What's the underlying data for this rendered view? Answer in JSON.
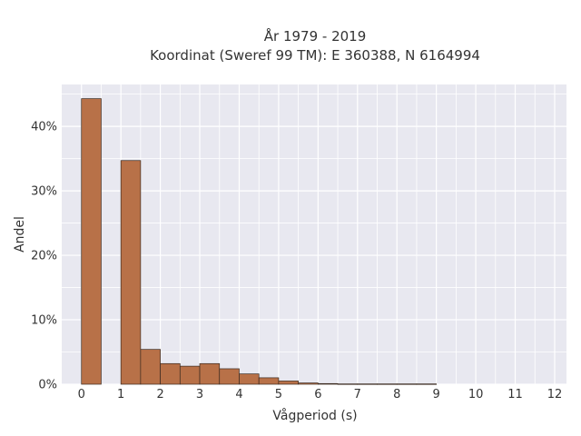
{
  "chart_data": {
    "type": "bar",
    "title_lines": [
      "År 1979 - 2019",
      "Koordinat (Sweref 99 TM): E 360388, N 6164994"
    ],
    "xlabel": "Vågperiod (s)",
    "ylabel": "Andel",
    "bin_width": 0.5,
    "bins": [
      {
        "x0": 0.0,
        "value": 44.3
      },
      {
        "x0": 0.5,
        "value": 0.0
      },
      {
        "x0": 1.0,
        "value": 34.7
      },
      {
        "x0": 1.5,
        "value": 5.4
      },
      {
        "x0": 2.0,
        "value": 3.2
      },
      {
        "x0": 2.5,
        "value": 2.8
      },
      {
        "x0": 3.0,
        "value": 3.2
      },
      {
        "x0": 3.5,
        "value": 2.4
      },
      {
        "x0": 4.0,
        "value": 1.6
      },
      {
        "x0": 4.5,
        "value": 1.0
      },
      {
        "x0": 5.0,
        "value": 0.5
      },
      {
        "x0": 5.5,
        "value": 0.2
      },
      {
        "x0": 6.0,
        "value": 0.1
      },
      {
        "x0": 6.5,
        "value": 0.05
      },
      {
        "x0": 7.0,
        "value": 0.05
      },
      {
        "x0": 7.5,
        "value": 0.05
      },
      {
        "x0": 8.0,
        "value": 0.05
      },
      {
        "x0": 8.5,
        "value": 0.05
      }
    ],
    "xlim": [
      -0.5,
      12.3
    ],
    "ylim": [
      0,
      46.5
    ],
    "x_ticks": [
      0,
      1,
      2,
      3,
      4,
      5,
      6,
      7,
      8,
      9,
      10,
      11,
      12
    ],
    "x_tick_labels": [
      "0",
      "1",
      "2",
      "3",
      "4",
      "5",
      "6",
      "7",
      "8",
      "9",
      "10",
      "11",
      "12"
    ],
    "y_ticks": [
      0,
      10,
      20,
      30,
      40
    ],
    "y_tick_labels": [
      "0%",
      "10%",
      "20%",
      "30%",
      "40%"
    ],
    "grid": true,
    "colors": {
      "bar_fill": "#b87148",
      "bar_stroke": "#3a2a20",
      "plot_background": "#e8e8f0",
      "grid": "#ffffff",
      "text": "#333333"
    }
  }
}
